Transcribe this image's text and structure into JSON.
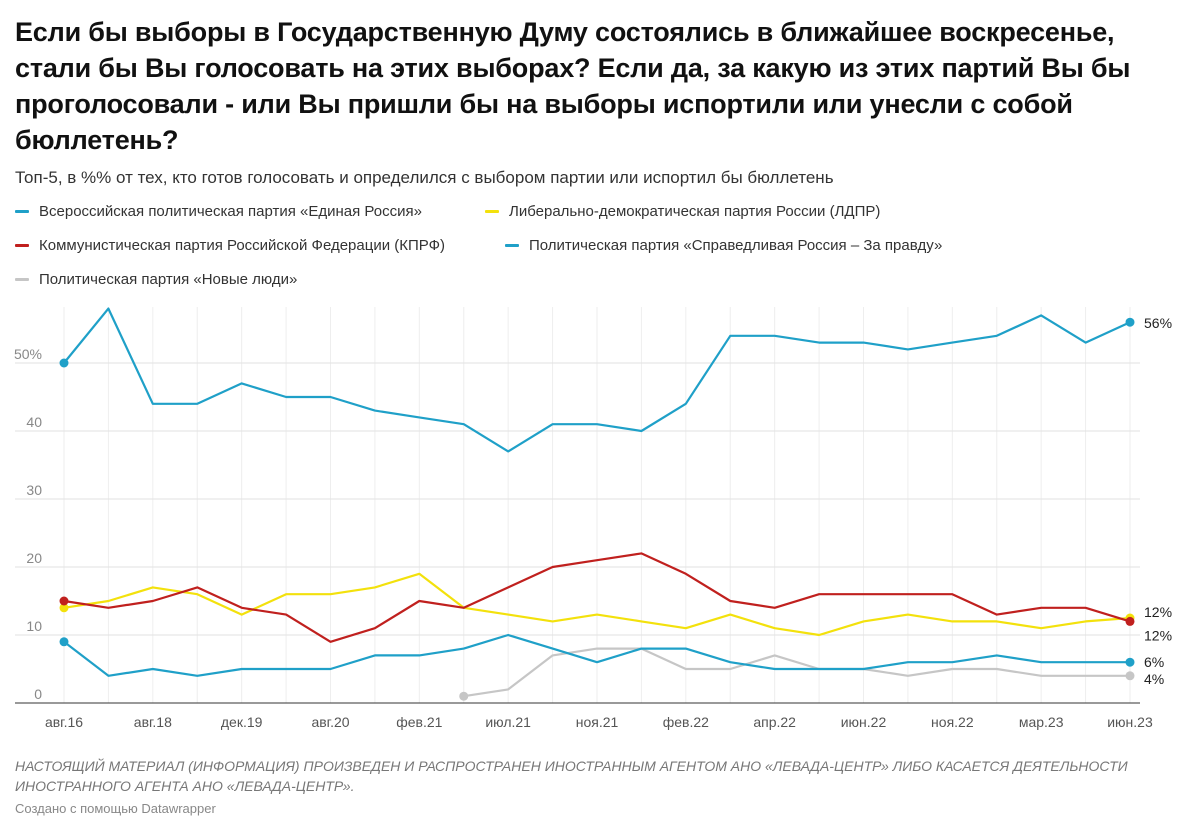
{
  "title": "Если бы выборы в Государственную Думу состоялись в ближайшее воскресенье, стали бы Вы голосовать на этих выборах? Если да, за какую из этих партий Вы бы проголосовали - или Вы пришли бы на выборы испортили или унесли с собой бюллетень?",
  "subtitle": "Топ-5, в %% от тех, кто готов голосовать и определился с выбором партии или испортил бы бюллетень",
  "note": "Настоящий материал (информация) произведен и распространен иностранным агентом АНО «Левада-Центр» либо касается деятельности иностранного агента АНО «Левада-Центр».",
  "credit": "Создано с помощью Datawrapper",
  "chart_data": {
    "type": "line",
    "y_ticks": [
      0,
      10,
      20,
      30,
      40,
      50
    ],
    "y_tick_labels": [
      "0",
      "10",
      "20",
      "30",
      "40",
      "50%"
    ],
    "ylim": [
      0,
      58
    ],
    "grid": "vertical and horizontal",
    "legend_position": "top",
    "x_tick_labels": [
      "авг.16",
      "авг.18",
      "дек.19",
      "авг.20",
      "фев.21",
      "июл.21",
      "ноя.21",
      "фев.22",
      "апр.22",
      "июн.22",
      "ноя.22",
      "мар.23",
      "июн.23"
    ],
    "series": [
      {
        "name": "Всероссийская политическая партия «Единая Россия»",
        "color": "#1fa0c8",
        "values": [
          50,
          58,
          44,
          44,
          47,
          45,
          45,
          43,
          42,
          41,
          37,
          41,
          41,
          40,
          44,
          54,
          54,
          53,
          53,
          52,
          53,
          54,
          57,
          53,
          56
        ],
        "end_label": "56%"
      },
      {
        "name": "Либерально-демократическая партия России (ЛДПР)",
        "color": "#f3e10c",
        "values": [
          14,
          15,
          17,
          16,
          13,
          16,
          16,
          17,
          19,
          14,
          13,
          12,
          13,
          12,
          11,
          13,
          11,
          10,
          12,
          13,
          12,
          12,
          11,
          12,
          12.5
        ],
        "end_label": "12%"
      },
      {
        "name": "Коммунистическая партия Российской Федерации (КПРФ)",
        "color": "#c0201e",
        "values": [
          15,
          14,
          15,
          17,
          14,
          13,
          9,
          11,
          15,
          14,
          17,
          20,
          21,
          22,
          19,
          15,
          14,
          16,
          16,
          16,
          16,
          13,
          14,
          14,
          12
        ],
        "end_label": "12%"
      },
      {
        "name": "Политическая партия «Справедливая Россия – За правду»",
        "color": "#1fa0c8",
        "values": [
          9,
          4,
          5,
          4,
          5,
          5,
          5,
          7,
          7,
          8,
          10,
          8,
          6,
          8,
          8,
          6,
          5,
          5,
          5,
          6,
          6,
          7,
          6,
          6,
          6
        ],
        "end_label": "6%"
      },
      {
        "name": "Политическая партия «Новые люди»",
        "color": "#c6c6c6",
        "values": [
          null,
          null,
          null,
          null,
          null,
          null,
          null,
          null,
          null,
          1,
          2,
          7,
          8,
          8,
          5,
          5,
          7,
          5,
          5,
          4,
          5,
          5,
          4,
          4,
          4
        ],
        "end_label": "4%"
      }
    ]
  }
}
